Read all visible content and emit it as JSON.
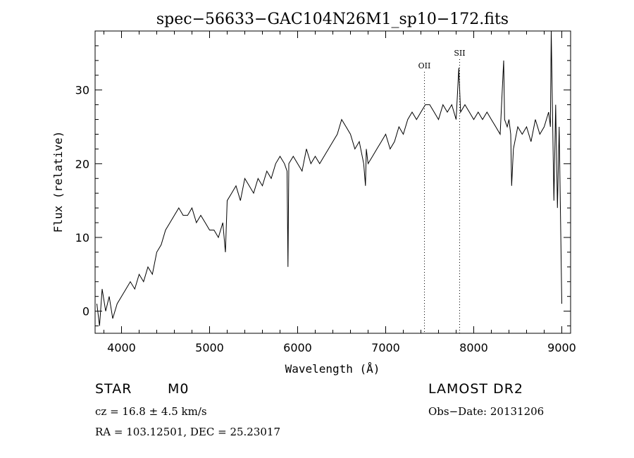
{
  "chart_data": {
    "type": "line",
    "title": "spec−56633−GAC104N26M1_sp10−172.fits",
    "xlabel": "Wavelength (Å)",
    "ylabel": "Flux (relative)",
    "xlim": [
      3700,
      9100
    ],
    "ylim": [
      -3,
      38
    ],
    "x_ticks": [
      4000,
      5000,
      6000,
      7000,
      8000,
      9000
    ],
    "y_ticks": [
      0,
      10,
      20,
      30
    ],
    "line_color": "#000000",
    "grid": false,
    "series": [
      {
        "x": [
          3720,
          3750,
          3780,
          3820,
          3860,
          3900,
          3950,
          4000,
          4050,
          4100,
          4150,
          4200,
          4250,
          4300,
          4350,
          4400,
          4450,
          4500,
          4550,
          4600,
          4650,
          4700,
          4750,
          4800,
          4850,
          4900,
          4950,
          5000,
          5050,
          5100,
          5150,
          5180,
          5200,
          5250,
          5300,
          5350,
          5400,
          5450,
          5500,
          5550,
          5600,
          5650,
          5700,
          5750,
          5800,
          5850,
          5880,
          5890,
          5900,
          5950,
          6000,
          6050,
          6100,
          6150,
          6200,
          6250,
          6300,
          6350,
          6400,
          6450,
          6500,
          6550,
          6600,
          6650,
          6700,
          6750,
          6770,
          6780,
          6800,
          6850,
          6900,
          6950,
          7000,
          7050,
          7100,
          7150,
          7200,
          7250,
          7300,
          7350,
          7400,
          7450,
          7500,
          7550,
          7600,
          7650,
          7700,
          7750,
          7800,
          7830,
          7850,
          7900,
          7950,
          8000,
          8050,
          8100,
          8150,
          8200,
          8250,
          8300,
          8340,
          8350,
          8380,
          8400,
          8420,
          8430,
          8450,
          8500,
          8550,
          8600,
          8650,
          8700,
          8750,
          8800,
          8850,
          8870,
          8880,
          8890,
          8910,
          8930,
          8950,
          8970,
          9000
        ],
        "y": [
          1,
          -2,
          3,
          0,
          2,
          -1,
          1,
          2,
          3,
          4,
          3,
          5,
          4,
          6,
          5,
          8,
          9,
          11,
          12,
          13,
          14,
          13,
          13,
          14,
          12,
          13,
          12,
          11,
          11,
          10,
          12,
          8,
          15,
          16,
          17,
          15,
          18,
          17,
          16,
          18,
          17,
          19,
          18,
          20,
          21,
          20,
          19,
          6,
          20,
          21,
          20,
          19,
          22,
          20,
          21,
          20,
          21,
          22,
          23,
          24,
          26,
          25,
          24,
          22,
          23,
          20,
          17,
          22,
          20,
          21,
          22,
          23,
          24,
          22,
          23,
          25,
          24,
          26,
          27,
          26,
          27,
          28,
          28,
          27,
          26,
          28,
          27,
          28,
          26,
          33,
          27,
          28,
          27,
          26,
          27,
          26,
          27,
          26,
          25,
          24,
          34,
          26,
          25,
          26,
          24,
          17,
          22,
          25,
          24,
          25,
          23,
          26,
          24,
          25,
          27,
          25,
          38,
          30,
          15,
          28,
          14,
          25,
          1
        ]
      }
    ],
    "annotations": [
      {
        "label": "OII",
        "x": 7440
      },
      {
        "label": "SII",
        "x": 7840
      }
    ]
  },
  "info": {
    "object_class": "STAR",
    "subclass": "M0",
    "survey": "LAMOST DR2",
    "cz_text": "cz = 16.8 ± 4.5 km/s",
    "obs_date": "Obs−Date: 20131206",
    "coords": "RA = 103.12501, DEC =  25.23017"
  }
}
